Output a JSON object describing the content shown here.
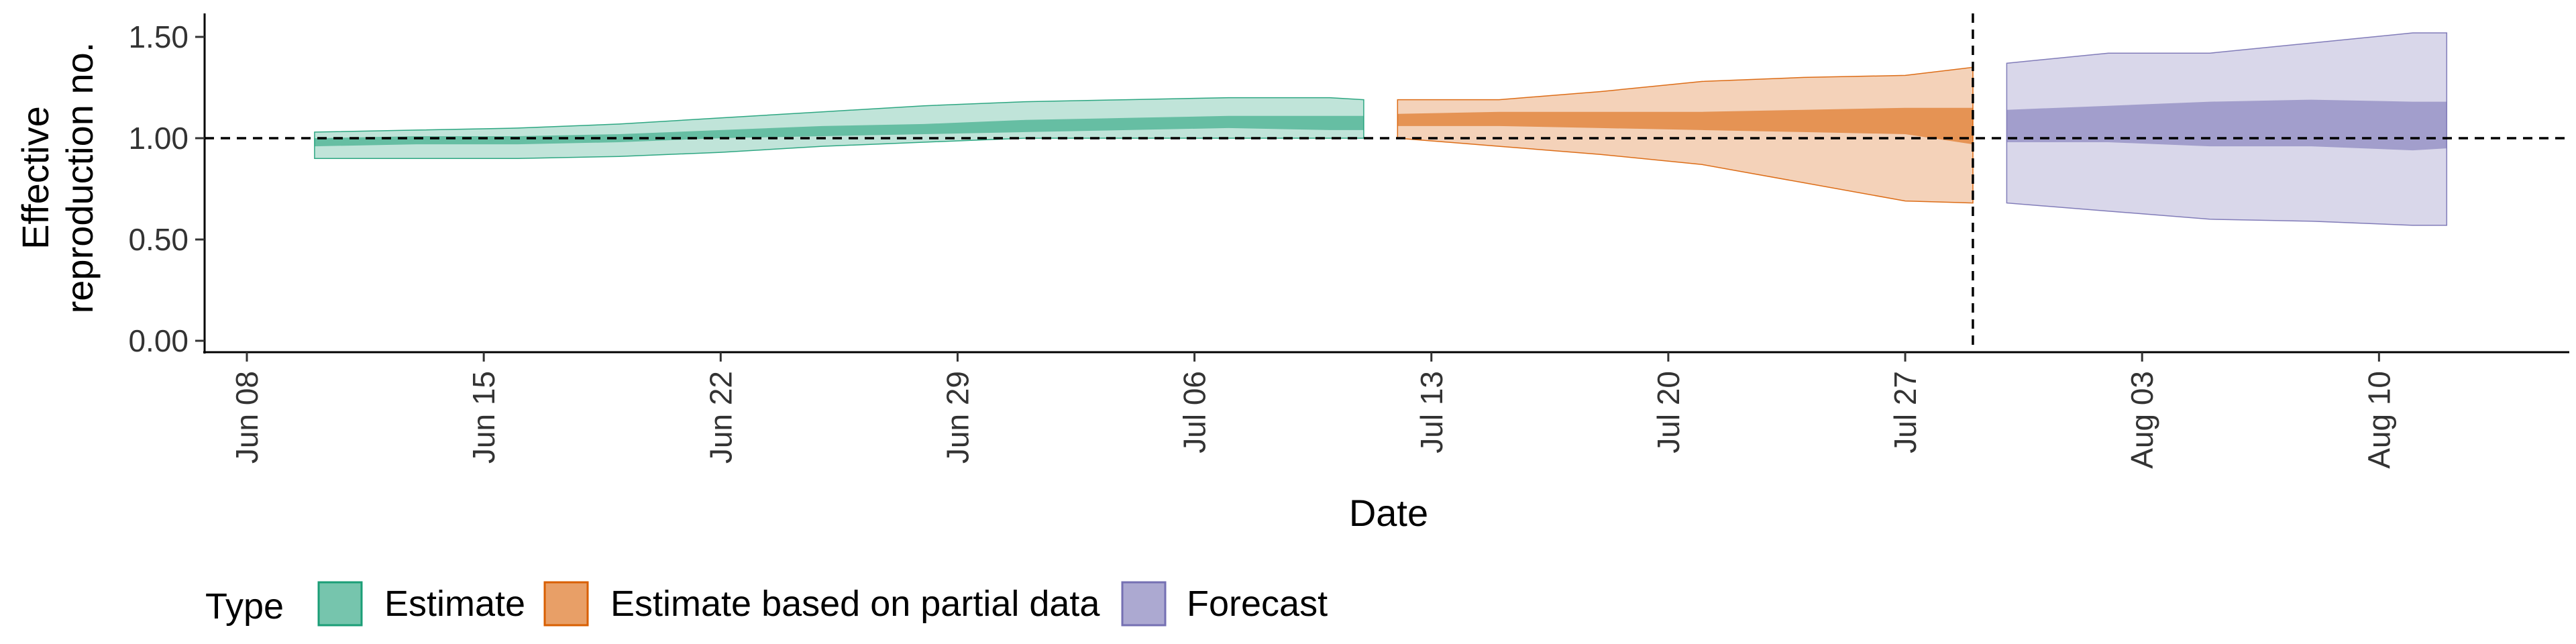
{
  "chart_data": {
    "type": "area",
    "xlabel": "Date",
    "ylabel_lines": [
      "Effective",
      "reproduction no."
    ],
    "ylim": [
      -0.05,
      1.6
    ],
    "yticks": [
      {
        "value": 0.0,
        "label": "0.00"
      },
      {
        "value": 0.5,
        "label": "0.50"
      },
      {
        "value": 1.0,
        "label": "1.00"
      },
      {
        "value": 1.5,
        "label": "1.50"
      }
    ],
    "xticks": [
      {
        "date": "2020-06-08",
        "label": "Jun 08"
      },
      {
        "date": "2020-06-15",
        "label": "Jun 15"
      },
      {
        "date": "2020-06-22",
        "label": "Jun 22"
      },
      {
        "date": "2020-06-29",
        "label": "Jun 29"
      },
      {
        "date": "2020-07-06",
        "label": "Jul 06"
      },
      {
        "date": "2020-07-13",
        "label": "Jul 13"
      },
      {
        "date": "2020-07-20",
        "label": "Jul 20"
      },
      {
        "date": "2020-07-27",
        "label": "Jul 27"
      },
      {
        "date": "2020-08-03",
        "label": "Aug 03"
      },
      {
        "date": "2020-08-10",
        "label": "Aug 10"
      }
    ],
    "xlim": [
      "2020-06-08",
      "2020-08-15"
    ],
    "reference_line_y": 1.0,
    "forecast_date": "2020-07-29",
    "grid": false,
    "legend": {
      "title": "Type",
      "position": "bottom",
      "entries": [
        "Estimate",
        "Estimate based on partial data",
        "Forecast"
      ]
    },
    "series": [
      {
        "name": "Estimate",
        "fill": "#1b9e77",
        "points": [
          {
            "date": "2020-06-10",
            "lower90": 0.9,
            "lower50": 0.96,
            "upper50": 1.0,
            "upper90": 1.03
          },
          {
            "date": "2020-06-13",
            "lower90": 0.9,
            "lower50": 0.97,
            "upper50": 1.01,
            "upper90": 1.04
          },
          {
            "date": "2020-06-16",
            "lower90": 0.9,
            "lower50": 0.97,
            "upper50": 1.01,
            "upper90": 1.05
          },
          {
            "date": "2020-06-19",
            "lower90": 0.91,
            "lower50": 0.98,
            "upper50": 1.02,
            "upper90": 1.07
          },
          {
            "date": "2020-06-22",
            "lower90": 0.93,
            "lower50": 1.0,
            "upper50": 1.04,
            "upper90": 1.1
          },
          {
            "date": "2020-06-25",
            "lower90": 0.96,
            "lower50": 1.01,
            "upper50": 1.06,
            "upper90": 1.13
          },
          {
            "date": "2020-06-28",
            "lower90": 0.98,
            "lower50": 1.02,
            "upper50": 1.07,
            "upper90": 1.16
          },
          {
            "date": "2020-07-01",
            "lower90": 1.0,
            "lower50": 1.03,
            "upper50": 1.09,
            "upper90": 1.18
          },
          {
            "date": "2020-07-04",
            "lower90": 1.0,
            "lower50": 1.04,
            "upper50": 1.1,
            "upper90": 1.19
          },
          {
            "date": "2020-07-07",
            "lower90": 1.0,
            "lower50": 1.05,
            "upper50": 1.11,
            "upper90": 1.2
          },
          {
            "date": "2020-07-10",
            "lower90": 1.0,
            "lower50": 1.04,
            "upper50": 1.11,
            "upper90": 1.2
          },
          {
            "date": "2020-07-11",
            "lower90": 1.0,
            "lower50": 1.04,
            "upper50": 1.11,
            "upper90": 1.19
          }
        ]
      },
      {
        "name": "Estimate based on partial data",
        "fill": "#d95f02",
        "points": [
          {
            "date": "2020-07-12",
            "lower90": 1.0,
            "lower50": 1.06,
            "upper50": 1.12,
            "upper90": 1.19
          },
          {
            "date": "2020-07-15",
            "lower90": 0.96,
            "lower50": 1.06,
            "upper50": 1.13,
            "upper90": 1.19
          },
          {
            "date": "2020-07-18",
            "lower90": 0.92,
            "lower50": 1.05,
            "upper50": 1.13,
            "upper90": 1.23
          },
          {
            "date": "2020-07-21",
            "lower90": 0.87,
            "lower50": 1.04,
            "upper50": 1.13,
            "upper90": 1.28
          },
          {
            "date": "2020-07-24",
            "lower90": 0.78,
            "lower50": 1.03,
            "upper50": 1.14,
            "upper90": 1.3
          },
          {
            "date": "2020-07-27",
            "lower90": 0.69,
            "lower50": 1.02,
            "upper50": 1.15,
            "upper90": 1.31
          },
          {
            "date": "2020-07-29",
            "lower90": 0.68,
            "lower50": 0.97,
            "upper50": 1.15,
            "upper90": 1.35
          }
        ]
      },
      {
        "name": "Forecast",
        "fill": "#7570b3",
        "points": [
          {
            "date": "2020-07-30",
            "lower90": 0.68,
            "lower50": 0.98,
            "upper50": 1.14,
            "upper90": 1.37
          },
          {
            "date": "2020-08-02",
            "lower90": 0.64,
            "lower50": 0.98,
            "upper50": 1.16,
            "upper90": 1.42
          },
          {
            "date": "2020-08-05",
            "lower90": 0.6,
            "lower50": 0.96,
            "upper50": 1.18,
            "upper90": 1.42
          },
          {
            "date": "2020-08-08",
            "lower90": 0.59,
            "lower50": 0.96,
            "upper50": 1.19,
            "upper90": 1.47
          },
          {
            "date": "2020-08-11",
            "lower90": 0.57,
            "lower50": 0.94,
            "upper50": 1.18,
            "upper90": 1.52
          },
          {
            "date": "2020-08-12",
            "lower90": 0.57,
            "lower50": 0.95,
            "upper50": 1.18,
            "upper90": 1.52
          }
        ]
      }
    ]
  }
}
